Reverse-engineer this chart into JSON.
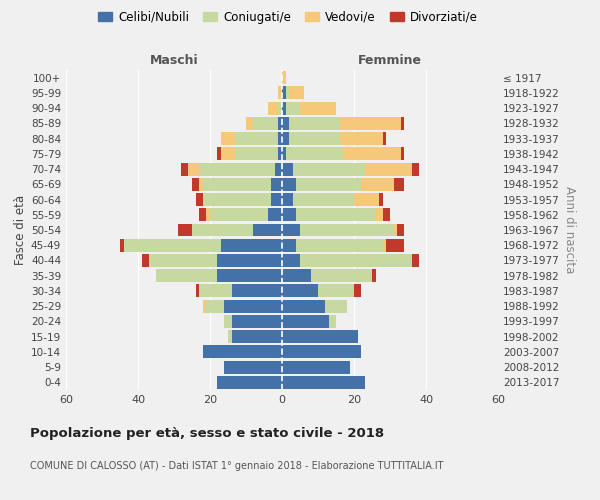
{
  "age_groups_bottom_to_top": [
    "0-4",
    "5-9",
    "10-14",
    "15-19",
    "20-24",
    "25-29",
    "30-34",
    "35-39",
    "40-44",
    "45-49",
    "50-54",
    "55-59",
    "60-64",
    "65-69",
    "70-74",
    "75-79",
    "80-84",
    "85-89",
    "90-94",
    "95-99",
    "100+"
  ],
  "birth_years_bottom_to_top": [
    "2013-2017",
    "2008-2012",
    "2003-2007",
    "1998-2002",
    "1993-1997",
    "1988-1992",
    "1983-1987",
    "1978-1982",
    "1973-1977",
    "1968-1972",
    "1963-1967",
    "1958-1962",
    "1953-1957",
    "1948-1952",
    "1943-1947",
    "1938-1942",
    "1933-1937",
    "1928-1932",
    "1923-1927",
    "1918-1922",
    "≤ 1917"
  ],
  "maschi": {
    "celibi": [
      18,
      16,
      22,
      14,
      14,
      16,
      14,
      18,
      18,
      17,
      8,
      4,
      3,
      3,
      2,
      1,
      1,
      1,
      0,
      0,
      0
    ],
    "coniugati": [
      0,
      0,
      0,
      1,
      2,
      5,
      9,
      17,
      19,
      27,
      17,
      16,
      19,
      19,
      21,
      12,
      12,
      7,
      1,
      0,
      0
    ],
    "vedovi": [
      0,
      0,
      0,
      0,
      0,
      1,
      0,
      0,
      0,
      0,
      0,
      1,
      0,
      1,
      3,
      4,
      4,
      2,
      3,
      1,
      0
    ],
    "divorziati": [
      0,
      0,
      0,
      0,
      0,
      0,
      1,
      0,
      2,
      1,
      4,
      2,
      2,
      2,
      2,
      1,
      0,
      0,
      0,
      0,
      0
    ]
  },
  "femmine": {
    "nubili": [
      23,
      19,
      22,
      21,
      13,
      12,
      10,
      8,
      5,
      4,
      5,
      4,
      3,
      4,
      3,
      1,
      2,
      2,
      1,
      1,
      0
    ],
    "coniugate": [
      0,
      0,
      0,
      0,
      2,
      6,
      10,
      17,
      31,
      24,
      26,
      22,
      17,
      18,
      20,
      16,
      14,
      14,
      4,
      1,
      0
    ],
    "vedove": [
      0,
      0,
      0,
      0,
      0,
      0,
      0,
      0,
      0,
      1,
      1,
      2,
      7,
      9,
      13,
      16,
      12,
      17,
      10,
      4,
      1
    ],
    "divorziate": [
      0,
      0,
      0,
      0,
      0,
      0,
      2,
      1,
      2,
      5,
      2,
      2,
      1,
      3,
      2,
      1,
      1,
      1,
      0,
      0,
      0
    ]
  },
  "colors": {
    "celibi_nubili": "#4472a8",
    "coniugati": "#c5d9a0",
    "vedovi": "#f5c87a",
    "divorziati": "#c0392b"
  },
  "xlim": 60,
  "title": "Popolazione per età, sesso e stato civile - 2018",
  "subtitle": "COMUNE DI CALOSSO (AT) - Dati ISTAT 1° gennaio 2018 - Elaborazione TUTTITALIA.IT",
  "ylabel_left": "Fasce di età",
  "ylabel_right": "Anni di nascita",
  "xlabel_left": "Maschi",
  "xlabel_right": "Femmine",
  "legend_labels": [
    "Celibi/Nubili",
    "Coniugati/e",
    "Vedovi/e",
    "Divorziati/e"
  ],
  "background_color": "#f0f0f0"
}
